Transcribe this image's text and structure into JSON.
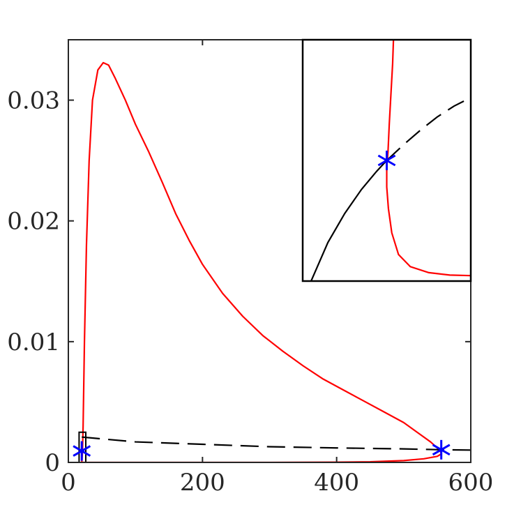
{
  "chart_data": {
    "type": "line",
    "title": "",
    "xlabel": "",
    "ylabel": "",
    "xlim": [
      0,
      600
    ],
    "ylim": [
      0,
      0.035
    ],
    "x_ticks": [
      0,
      200,
      400,
      600
    ],
    "x_tick_labels": [
      "0",
      "200",
      "400",
      "600"
    ],
    "y_ticks": [
      0,
      0.01,
      0.02,
      0.03
    ],
    "y_tick_labels": [
      "0",
      "0.01",
      "0.02",
      "0.03"
    ],
    "grid": false,
    "legend": "none",
    "series": [
      {
        "style": "solid",
        "color": "#ff0000",
        "points": [
          [
            20,
            0.0
          ],
          [
            21,
            0.0008
          ],
          [
            22,
            0.003
          ],
          [
            24,
            0.01
          ],
          [
            27,
            0.018
          ],
          [
            31,
            0.025
          ],
          [
            36,
            0.03
          ],
          [
            44,
            0.0325
          ],
          [
            52,
            0.0331
          ],
          [
            60,
            0.0329
          ],
          [
            70,
            0.0318
          ],
          [
            85,
            0.03
          ],
          [
            100,
            0.028
          ],
          [
            120,
            0.0257
          ],
          [
            140,
            0.0232
          ],
          [
            160,
            0.0206
          ],
          [
            180,
            0.0184
          ],
          [
            200,
            0.0164
          ],
          [
            230,
            0.014
          ],
          [
            260,
            0.0121
          ],
          [
            290,
            0.0105
          ],
          [
            320,
            0.0092
          ],
          [
            350,
            0.008
          ],
          [
            380,
            0.0069
          ],
          [
            410,
            0.006
          ],
          [
            440,
            0.0051
          ],
          [
            470,
            0.0042
          ],
          [
            500,
            0.0033
          ],
          [
            520,
            0.0025
          ],
          [
            540,
            0.0017
          ],
          [
            550,
            0.0012
          ],
          [
            555,
            0.0009
          ],
          [
            556,
            0.0007
          ],
          [
            550,
            0.0005
          ],
          [
            530,
            0.0003
          ],
          [
            500,
            0.00015
          ],
          [
            450,
            5e-05
          ],
          [
            400,
            2e-05
          ],
          [
            300,
            0.0
          ],
          [
            200,
            0.0
          ],
          [
            100,
            0.0
          ],
          [
            40,
            0.0
          ],
          [
            20,
            0.0
          ]
        ]
      },
      {
        "style": "dashed",
        "color": "#000000",
        "points": [
          [
            20,
            0.0021
          ],
          [
            100,
            0.0017
          ],
          [
            200,
            0.0015
          ],
          [
            300,
            0.0013
          ],
          [
            400,
            0.0012
          ],
          [
            500,
            0.00112
          ],
          [
            556,
            0.00105
          ],
          [
            600,
            0.00102
          ]
        ]
      }
    ],
    "markers": [
      {
        "symbol": "asterisk",
        "color": "#0000ff",
        "x": 20,
        "y": 0.00095
      },
      {
        "symbol": "asterisk",
        "color": "#0000ff",
        "x": 556,
        "y": 0.00105
      }
    ],
    "zoom_box": {
      "x": [
        16,
        26
      ],
      "y": [
        0,
        0.0025
      ]
    },
    "inset": {
      "xlim": [
        -1,
        1
      ],
      "ylim": [
        -1,
        1
      ],
      "ticks": false,
      "series": [
        {
          "style": "solid",
          "color": "#ff0000",
          "points": [
            [
              0.08,
              1.0
            ],
            [
              0.07,
              0.8
            ],
            [
              0.05,
              0.55
            ],
            [
              0.03,
              0.3
            ],
            [
              0.015,
              0.07
            ],
            [
              0.0,
              -0.05
            ],
            [
              0.0,
              -0.22
            ],
            [
              0.02,
              -0.4
            ],
            [
              0.06,
              -0.6
            ],
            [
              0.14,
              -0.78
            ],
            [
              0.28,
              -0.88
            ],
            [
              0.5,
              -0.93
            ],
            [
              0.75,
              -0.95
            ],
            [
              1.0,
              -0.955
            ]
          ]
        },
        {
          "style": "solid",
          "color": "#000000",
          "points": [
            [
              -0.9,
              -1.0
            ],
            [
              -0.7,
              -0.68
            ],
            [
              -0.5,
              -0.44
            ],
            [
              -0.3,
              -0.24
            ],
            [
              -0.12,
              -0.09
            ],
            [
              0.0,
              0.0
            ]
          ]
        },
        {
          "style": "dashed",
          "color": "#000000",
          "points": [
            [
              0.0,
              0.0
            ],
            [
              0.2,
              0.13
            ],
            [
              0.4,
              0.25
            ],
            [
              0.6,
              0.36
            ],
            [
              0.8,
              0.45
            ],
            [
              1.0,
              0.52
            ]
          ]
        }
      ],
      "markers": [
        {
          "symbol": "asterisk",
          "color": "#0000ff",
          "x": 0.0,
          "y": 0.0
        }
      ]
    }
  }
}
